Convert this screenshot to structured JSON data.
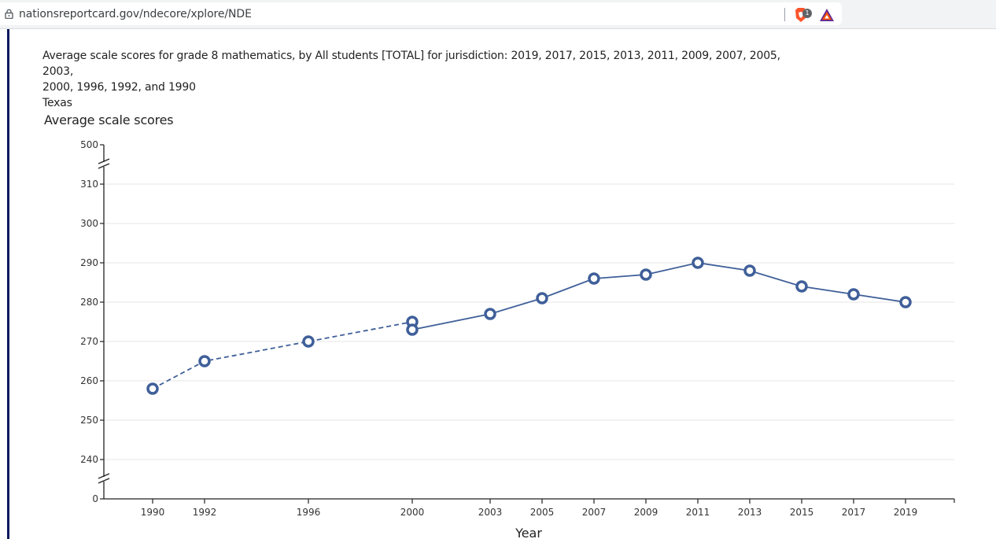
{
  "browser": {
    "url": "nationsreportcard.gov/ndecore/xplore/NDE",
    "brave_badge_count": "1",
    "icons": [
      "lock-icon",
      "brave-shield-icon",
      "brave-rewards-icon"
    ]
  },
  "caption": {
    "line1": "Average scale scores for grade 8 mathematics, by All students [TOTAL] for jurisdiction: 2019, 2017, 2015, 2013, 2011, 2009, 2007, 2005, 2003,",
    "line2": "2000, 1996, 1992, and 1990",
    "line3": "Texas"
  },
  "colors": {
    "series": "#3f5f99",
    "grid": "#e6e6e6",
    "axis": "#222222",
    "sidebar": "#0b1a5e"
  },
  "chart_data": {
    "type": "line",
    "title": "",
    "ylabel": "Average scale scores",
    "xlabel": "Year",
    "ylim": [
      240,
      310
    ],
    "y_axis_break": {
      "top_label": 500,
      "bottom_label": 0
    },
    "yticks": [
      0,
      240,
      250,
      260,
      270,
      280,
      290,
      300,
      310,
      500
    ],
    "xticks": [
      1990,
      1992,
      1996,
      2000,
      2003,
      2005,
      2007,
      2009,
      2011,
      2013,
      2015,
      2017,
      2019
    ],
    "grid": true,
    "series": [
      {
        "style": "dashed",
        "note_from_legend": "",
        "x": [
          1990,
          1992,
          1996,
          2000
        ],
        "y": [
          258,
          265,
          270,
          275
        ]
      },
      {
        "style": "solid",
        "x": [
          2000,
          2003,
          2005,
          2007,
          2009,
          2011,
          2013,
          2015,
          2017,
          2019
        ],
        "y": [
          273,
          277,
          281,
          286,
          287,
          290,
          288,
          284,
          282,
          280
        ]
      }
    ]
  }
}
